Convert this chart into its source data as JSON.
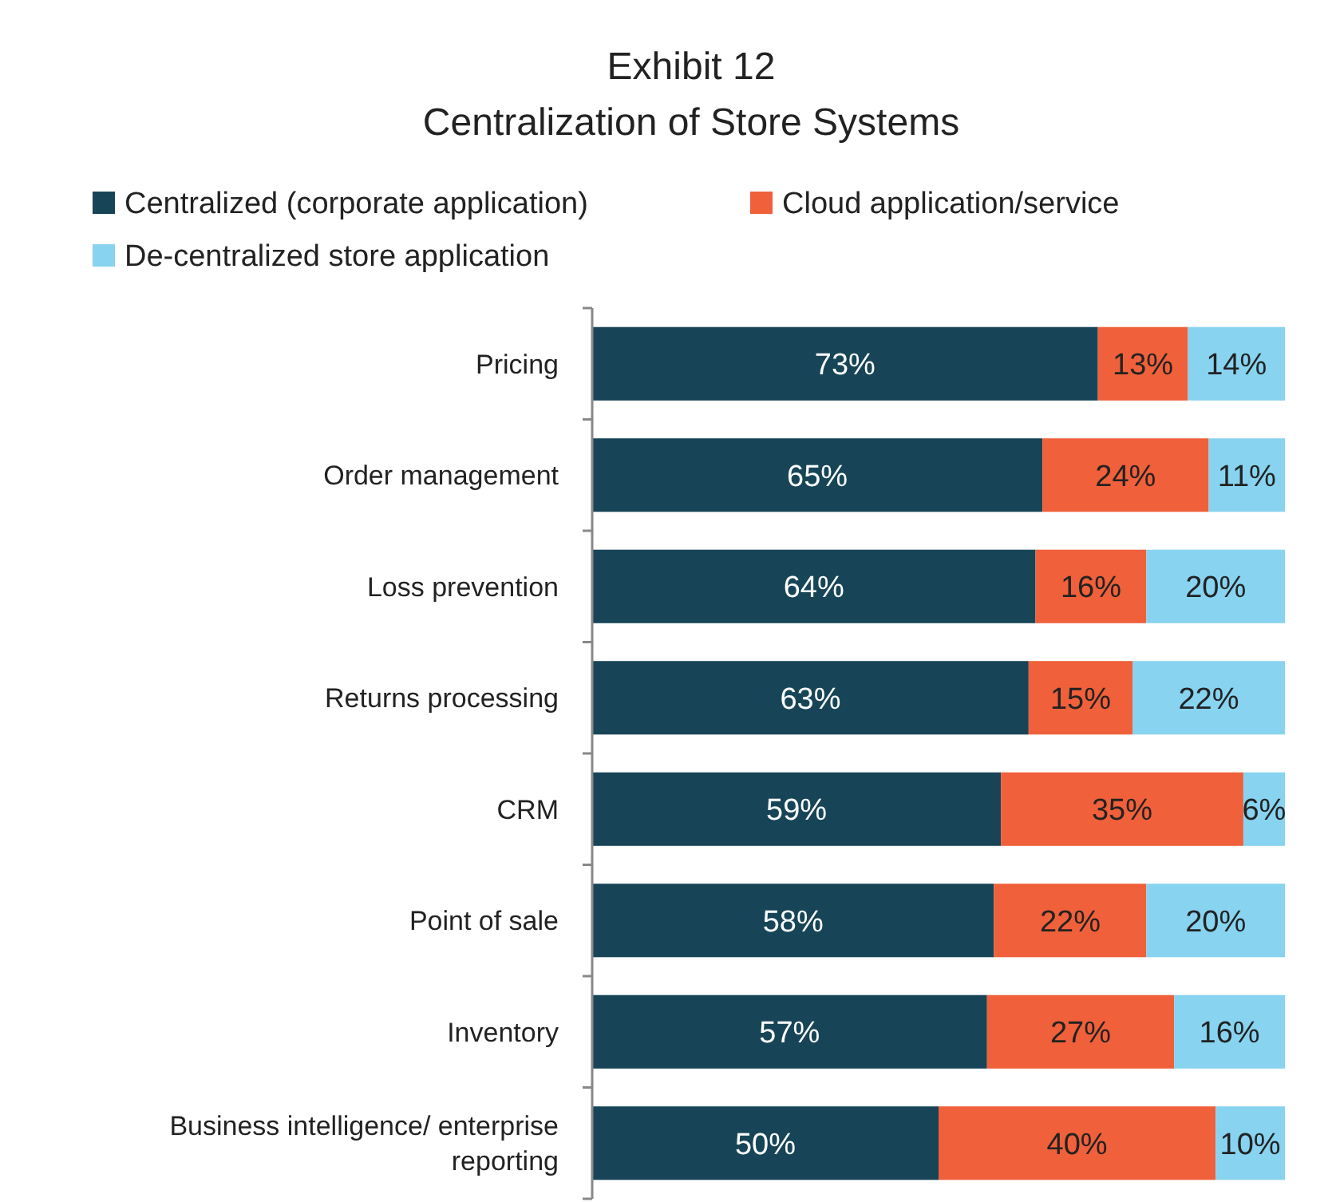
{
  "chart_data": {
    "type": "bar",
    "orientation": "horizontal",
    "stacked": true,
    "title": "Exhibit 12",
    "subtitle": "Centralization of Store Systems",
    "legend": "top",
    "xlim": [
      0,
      100
    ],
    "tick_labels": "y",
    "categories": [
      "Pricing",
      "Order management",
      "Loss prevention",
      "Returns processing",
      "CRM",
      "Point of sale",
      "Inventory",
      "Business intelligence/ enterprise reporting"
    ],
    "series": [
      {
        "name": "Centralized (corporate application)",
        "color": "#174557",
        "values": [
          73,
          65,
          64,
          63,
          59,
          58,
          57,
          50
        ],
        "value_labels": [
          "73%",
          "65%",
          "64%",
          "63%",
          "59%",
          "58%",
          "57%",
          "50%"
        ]
      },
      {
        "name": "Cloud application/service",
        "color": "#f0603a",
        "values": [
          13,
          24,
          16,
          15,
          35,
          22,
          27,
          40
        ],
        "value_labels": [
          "13%",
          "24%",
          "16%",
          "15%",
          "35%",
          "22%",
          "27%",
          "40%"
        ]
      },
      {
        "name": "De-centralized store application",
        "color": "#87d3f0",
        "values": [
          14,
          11,
          20,
          22,
          6,
          20,
          16,
          10
        ],
        "value_labels": [
          "14%",
          "11%",
          "20%",
          "22%",
          "6%",
          "20%",
          "16%",
          "10%"
        ]
      }
    ]
  }
}
